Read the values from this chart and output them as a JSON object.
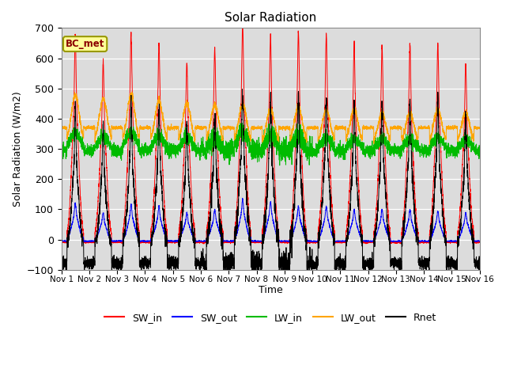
{
  "title": "Solar Radiation",
  "xlabel": "Time",
  "ylabel": "Solar Radiation (W/m2)",
  "ylim": [
    -100,
    700
  ],
  "yticks": [
    -100,
    0,
    100,
    200,
    300,
    400,
    500,
    600,
    700
  ],
  "n_days": 15,
  "points_per_day": 288,
  "label_box_text": "BC_met",
  "colors": {
    "SW_in": "#FF0000",
    "SW_out": "#0000FF",
    "LW_in": "#00BB00",
    "LW_out": "#FFA500",
    "Rnet": "#000000"
  },
  "sw_in_peaks": [
    615,
    540,
    620,
    590,
    535,
    575,
    650,
    615,
    625,
    615,
    590,
    580,
    585,
    590,
    530
  ],
  "sw_out_peaks": [
    110,
    80,
    105,
    100,
    80,
    90,
    120,
    115,
    100,
    100,
    90,
    90,
    90,
    85,
    80
  ],
  "lw_out_day_peaks": [
    480,
    465,
    480,
    460,
    450,
    445,
    450,
    430,
    440,
    430,
    430,
    420,
    420,
    430,
    420
  ],
  "lw_in_day_peaks": [
    355,
    340,
    355,
    345,
    340,
    335,
    355,
    340,
    340,
    335,
    330,
    330,
    330,
    335,
    330
  ],
  "rnet_night": -80,
  "background_color": "#DCDCDC",
  "xtick_labels": [
    "Nov 1",
    "Nov 2",
    "Nov 3",
    "Nov 4",
    "Nov 5",
    "Nov 6",
    "Nov 7",
    "Nov 8",
    "Nov 9",
    "Nov 10",
    "Nov 11",
    "Nov 12",
    "Nov 13",
    "Nov 14",
    "Nov 15",
    "Nov 16"
  ]
}
